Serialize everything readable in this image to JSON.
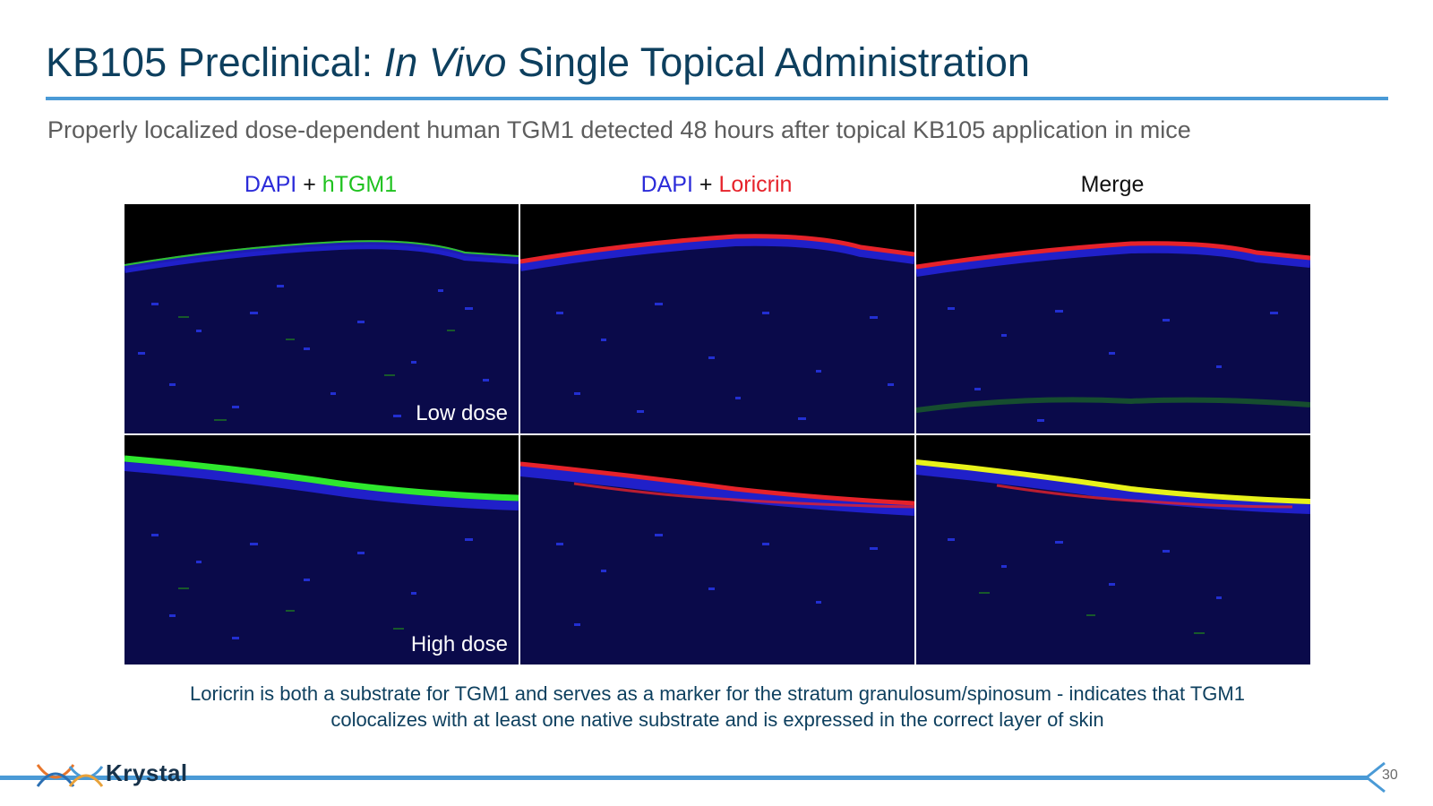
{
  "slide": {
    "title_prefix": "KB105 Preclinical: ",
    "title_italic": "In Vivo",
    "title_suffix": " Single Topical Administration",
    "subtitle": "Properly localized dose-dependent human TGM1 detected 48 hours after topical KB105 application in mice",
    "caption_line1": "Loricrin is both a substrate for TGM1 and serves as a marker for the stratum granulosum/spinosum - indicates that TGM1",
    "caption_line2": "colocalizes with at least one native substrate and is expressed in the correct layer of skin",
    "page_number": "30"
  },
  "columns": [
    {
      "part1": "DAPI",
      "plus": " + ",
      "part2": "hTGM1"
    },
    {
      "part1": "DAPI",
      "plus": " + ",
      "part2": "Loricrin"
    },
    {
      "part1": "Merge"
    }
  ],
  "rows": [
    {
      "label": "Low dose"
    },
    {
      "label": "High dose"
    }
  ],
  "logo": {
    "text": "Krystal"
  },
  "colors": {
    "title": "#0d3f5e",
    "accent_rule": "#4a9ad6",
    "dapi": "#2b2bd9",
    "htgm1": "#1fc21f",
    "loricrin": "#e6222a",
    "merge_overlap": "#e8f21a"
  }
}
